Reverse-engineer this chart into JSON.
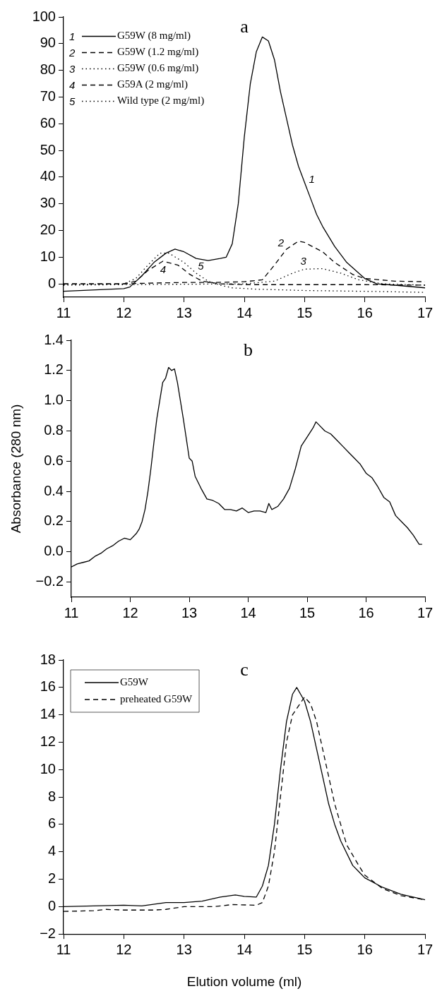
{
  "chart_data": [
    {
      "type": "line",
      "title": "a",
      "xlim": [
        11,
        17
      ],
      "xticks": [
        11,
        12,
        13,
        14,
        15,
        16,
        17
      ],
      "ylim": [
        -5,
        100
      ],
      "yticks": [
        0,
        10,
        20,
        30,
        40,
        50,
        60,
        70,
        80,
        90,
        100
      ],
      "grid": false,
      "legend": "top left",
      "marker": "none",
      "annotations": [
        {
          "text": "1",
          "x": 15.0,
          "y": 38
        },
        {
          "text": "2",
          "x": 14.7,
          "y": 13
        },
        {
          "text": "3",
          "x": 15.0,
          "y": 5.5
        },
        {
          "text": "4",
          "x": 12.65,
          "y": 8.5
        },
        {
          "text": "5",
          "x": 13.2,
          "y": 4
        }
      ],
      "series": [
        {
          "name": "G59W (8 mg/ml)",
          "color": "#000000",
          "line_style": "solid",
          "x": [
            11,
            12,
            12.1,
            12.3,
            12.5,
            12.7,
            12.85,
            13,
            13.2,
            13.4,
            13.6,
            13.7,
            13.8,
            13.9,
            14.0,
            14.1,
            14.2,
            14.3,
            14.4,
            14.5,
            14.6,
            14.7,
            14.8,
            14.9,
            15.0,
            15.1,
            15.2,
            15.3,
            15.5,
            15.7,
            16.0,
            16.2,
            16.5,
            17
          ],
          "values": [
            -2.8,
            -1.8,
            -1.2,
            3,
            8,
            11.5,
            13,
            12,
            9.5,
            8.7,
            9.5,
            10,
            15,
            30,
            55,
            75,
            87,
            92.5,
            91,
            84,
            72,
            62,
            52,
            44,
            38,
            32,
            26,
            21.5,
            14,
            8,
            2,
            0,
            -0.5,
            -1.5
          ]
        },
        {
          "name": "G59W (1.2 mg/ml)",
          "color": "#000000",
          "line_style": "dashed",
          "x": [
            11,
            12,
            12.5,
            13,
            13.5,
            14,
            14.3,
            14.5,
            14.7,
            14.9,
            15.0,
            15.3,
            15.5,
            15.8,
            16,
            16.5,
            17
          ],
          "values": [
            0,
            0,
            0.3,
            0.5,
            0.5,
            0.8,
            1.5,
            7,
            13,
            16,
            15.5,
            12,
            8,
            3.5,
            2,
            1,
            0.8
          ]
        },
        {
          "name": "G59W (0.6 mg/ml)",
          "color": "#000000",
          "line_style": "dotted",
          "x": [
            11,
            12,
            14,
            14.5,
            14.8,
            15.0,
            15.3,
            15.6,
            15.9,
            16.3,
            17
          ],
          "values": [
            -0.5,
            -0.3,
            0,
            1,
            4,
            5.5,
            5.7,
            4,
            1.5,
            0,
            -0.5
          ]
        },
        {
          "name": "G59A (2 mg/ml)",
          "color": "#000000",
          "line_style": "dashed",
          "x": [
            11,
            12,
            12.2,
            12.4,
            12.65,
            12.9,
            13.1,
            13.3,
            13.6,
            14,
            15,
            16,
            17
          ],
          "values": [
            0,
            0,
            1,
            5,
            8.5,
            7,
            3.5,
            1,
            0,
            -0.3,
            -0.3,
            -0.3,
            -0.5
          ]
        },
        {
          "name": "Wild type (2 mg/ml)",
          "color": "#000000",
          "line_style": "dotted",
          "x": [
            11,
            12,
            12.2,
            12.4,
            12.6,
            12.75,
            13,
            13.2,
            13.4,
            13.6,
            13.8,
            14.2,
            15,
            16,
            17
          ],
          "values": [
            -0.3,
            0,
            2,
            7,
            11.5,
            11.5,
            8,
            4,
            1,
            -0.5,
            -1.5,
            -2,
            -2.5,
            -2.8,
            -3.2
          ]
        }
      ]
    },
    {
      "type": "line",
      "title": "b",
      "ylabel": "Absorbance (280 nm)",
      "xlim": [
        11,
        17
      ],
      "xticks": [
        11,
        12,
        13,
        14,
        15,
        16,
        17
      ],
      "ylim": [
        -0.3,
        1.4
      ],
      "yticks": [
        {
          "value": -0.2,
          "label": "−0.2"
        },
        {
          "value": 0,
          "label": "0.0"
        },
        0.2,
        0.4,
        0.6,
        0.8,
        {
          "value": 1,
          "label": "1.0"
        },
        1.2,
        1.4
      ],
      "grid": false,
      "marker": "none",
      "series": [
        {
          "color": "#000000",
          "line_style": "solid",
          "x": [
            11.0,
            11.1,
            11.2,
            11.3,
            11.4,
            11.5,
            11.6,
            11.7,
            11.8,
            11.9,
            12.0,
            12.1,
            12.15,
            12.2,
            12.25,
            12.3,
            12.35,
            12.4,
            12.45,
            12.5,
            12.55,
            12.6,
            12.65,
            12.7,
            12.75,
            12.8,
            12.85,
            12.9,
            12.95,
            13.0,
            13.05,
            13.1,
            13.2,
            13.3,
            13.4,
            13.5,
            13.6,
            13.7,
            13.8,
            13.9,
            14.0,
            14.1,
            14.2,
            14.3,
            14.35,
            14.4,
            14.5,
            14.6,
            14.7,
            14.8,
            14.9,
            15.0,
            15.1,
            15.15,
            15.2,
            15.3,
            15.4,
            15.5,
            15.6,
            15.7,
            15.8,
            15.9,
            16.0,
            16.1,
            16.2,
            16.3,
            16.4,
            16.5,
            16.6,
            16.7,
            16.8,
            16.9,
            16.95
          ],
          "values": [
            -0.1,
            -0.08,
            -0.07,
            -0.06,
            -0.03,
            -0.01,
            0.02,
            0.04,
            0.07,
            0.09,
            0.08,
            0.12,
            0.15,
            0.2,
            0.28,
            0.4,
            0.55,
            0.72,
            0.88,
            1.0,
            1.12,
            1.15,
            1.22,
            1.2,
            1.21,
            1.12,
            1.0,
            0.88,
            0.75,
            0.62,
            0.6,
            0.5,
            0.42,
            0.35,
            0.34,
            0.32,
            0.28,
            0.28,
            0.27,
            0.29,
            0.26,
            0.27,
            0.27,
            0.26,
            0.32,
            0.28,
            0.3,
            0.35,
            0.42,
            0.55,
            0.7,
            0.76,
            0.82,
            0.86,
            0.84,
            0.8,
            0.78,
            0.74,
            0.7,
            0.66,
            0.62,
            0.58,
            0.52,
            0.49,
            0.43,
            0.36,
            0.33,
            0.24,
            0.2,
            0.16,
            0.11,
            0.05,
            0.05
          ]
        }
      ]
    },
    {
      "type": "line",
      "title": "c",
      "xlabel": "Elution volume (ml)",
      "xlim": [
        11,
        17
      ],
      "xticks": [
        11,
        12,
        13,
        14,
        15,
        16,
        17
      ],
      "ylim": [
        -2,
        18
      ],
      "yticks": [
        {
          "value": -2,
          "label": "−2"
        },
        0,
        2,
        4,
        6,
        8,
        10,
        12,
        14,
        16,
        18
      ],
      "grid": false,
      "legend": "top left",
      "marker": "none",
      "series": [
        {
          "name": "G59W",
          "color": "#000000",
          "line_style": "solid",
          "x": [
            11,
            12,
            12.3,
            12.7,
            13,
            13.3,
            13.6,
            13.85,
            14.0,
            14.2,
            14.3,
            14.4,
            14.5,
            14.6,
            14.7,
            14.8,
            14.87,
            15.0,
            15.1,
            15.2,
            15.3,
            15.4,
            15.5,
            15.6,
            15.8,
            16.0,
            16.3,
            16.6,
            17
          ],
          "values": [
            0,
            0.1,
            0.05,
            0.3,
            0.3,
            0.4,
            0.7,
            0.85,
            0.75,
            0.7,
            1.5,
            3,
            6,
            10,
            13.5,
            15.5,
            16,
            15,
            13.5,
            11.5,
            9.5,
            7.5,
            6,
            4.8,
            3,
            2.1,
            1.4,
            0.9,
            0.5
          ]
        },
        {
          "name": "preheated G59W",
          "color": "#000000",
          "line_style": "dashed",
          "x": [
            11,
            11.5,
            11.7,
            12,
            12.5,
            12.7,
            13,
            13.5,
            13.8,
            14.2,
            14.3,
            14.4,
            14.5,
            14.6,
            14.7,
            14.8,
            15.0,
            15.1,
            15.2,
            15.3,
            15.4,
            15.5,
            15.6,
            15.7,
            15.9,
            16.0,
            16.3,
            16.6,
            17
          ],
          "values": [
            -0.35,
            -0.3,
            -0.2,
            -0.25,
            -0.25,
            -0.2,
            0,
            0,
            0.15,
            0.1,
            0.3,
            1.5,
            4,
            8,
            12,
            14,
            15.3,
            14.8,
            13.5,
            11.5,
            9.5,
            7.5,
            6,
            4.5,
            3,
            2.3,
            1.3,
            0.8,
            0.5
          ]
        }
      ]
    }
  ]
}
